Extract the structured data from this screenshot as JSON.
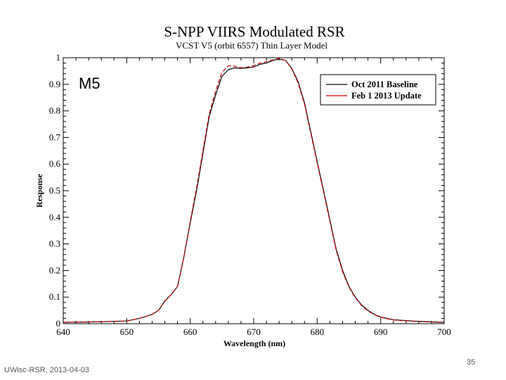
{
  "chart_data": {
    "type": "line",
    "title": "S-NPP VIIRS Modulated RSR",
    "subtitle": "VCST V5 (orbit 6557) Thin Layer Model",
    "xlabel": "Wavelength (nm)",
    "ylabel": "Response",
    "xlim": [
      640,
      700
    ],
    "ylim": [
      0,
      1
    ],
    "x_ticks": [
      "640",
      "650",
      "660",
      "670",
      "680",
      "690",
      "700"
    ],
    "y_ticks": [
      "0",
      "0.1",
      "0.2",
      "0.3",
      "0.4",
      "0.5",
      "0.6",
      "0.7",
      "0.8",
      "0.9",
      "1"
    ],
    "band_label": "M5",
    "legend_position": "top-right",
    "series": [
      {
        "name": "Oct 2011 Baseline",
        "color": "#000000",
        "dash": "solid",
        "x": [
          640,
          645,
          650,
          652,
          654,
          655,
          656,
          657,
          658,
          659,
          660,
          661,
          662,
          663,
          664,
          665,
          666,
          667,
          668,
          669,
          670,
          671,
          672,
          673,
          674,
          675,
          676,
          677,
          678,
          679,
          680,
          681,
          682,
          683,
          684,
          685,
          686,
          687,
          688,
          689,
          690,
          692,
          695,
          700
        ],
        "y": [
          0.005,
          0.007,
          0.01,
          0.02,
          0.035,
          0.05,
          0.085,
          0.11,
          0.14,
          0.25,
          0.38,
          0.5,
          0.64,
          0.78,
          0.86,
          0.93,
          0.955,
          0.962,
          0.96,
          0.962,
          0.965,
          0.975,
          0.98,
          0.99,
          0.995,
          0.99,
          0.96,
          0.91,
          0.83,
          0.72,
          0.61,
          0.5,
          0.39,
          0.28,
          0.2,
          0.14,
          0.1,
          0.07,
          0.05,
          0.035,
          0.025,
          0.015,
          0.01,
          0.005
        ]
      },
      {
        "name": "Feb 1 2013 Update",
        "color": "#cc0000",
        "dash": "dashed",
        "x": [
          640,
          645,
          650,
          652,
          654,
          655,
          656,
          657,
          658,
          659,
          660,
          661,
          662,
          663,
          664,
          665,
          666,
          667,
          668,
          669,
          670,
          671,
          672,
          673,
          674,
          675,
          676,
          677,
          678,
          679,
          680,
          681,
          682,
          683,
          684,
          685,
          686,
          687,
          688,
          689,
          690,
          692,
          695,
          700
        ],
        "y": [
          0.005,
          0.007,
          0.01,
          0.02,
          0.035,
          0.05,
          0.085,
          0.11,
          0.14,
          0.25,
          0.385,
          0.51,
          0.65,
          0.79,
          0.875,
          0.945,
          0.97,
          0.968,
          0.962,
          0.965,
          0.97,
          0.98,
          0.985,
          0.992,
          0.997,
          0.99,
          0.958,
          0.905,
          0.825,
          0.715,
          0.605,
          0.495,
          0.385,
          0.275,
          0.195,
          0.138,
          0.098,
          0.068,
          0.048,
          0.034,
          0.024,
          0.014,
          0.009,
          0.004
        ]
      }
    ]
  },
  "footer": {
    "source": "UWisc-RSR, 2013-04-03",
    "page_number": "35"
  }
}
